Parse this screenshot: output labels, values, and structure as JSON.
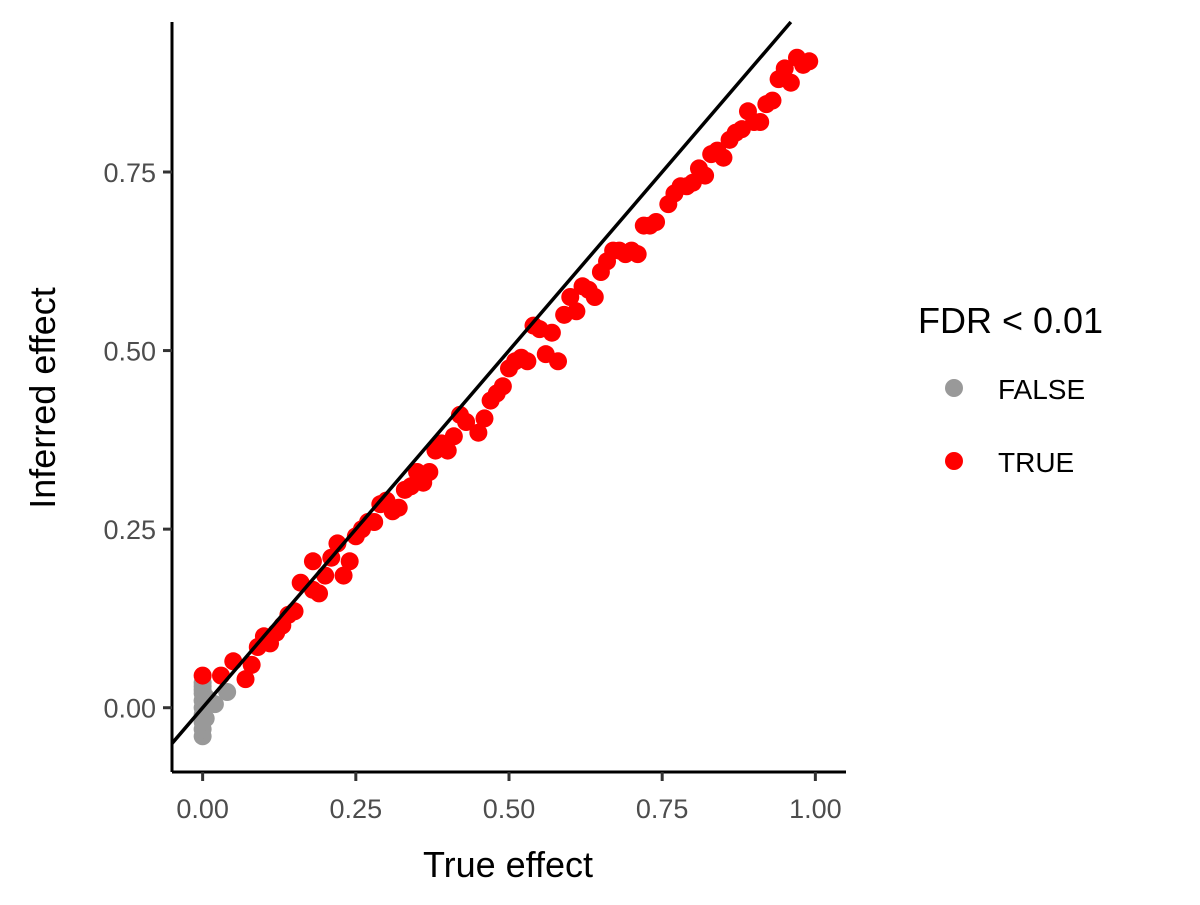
{
  "chart_data": {
    "type": "scatter",
    "xlabel": "True effect",
    "ylabel": "Inferred effect",
    "xlim": [
      -0.05,
      1.05
    ],
    "ylim": [
      -0.09,
      0.96
    ],
    "x_ticks": [
      "0.00",
      "0.25",
      "0.50",
      "0.75",
      "1.00"
    ],
    "y_ticks": [
      "0.00",
      "0.25",
      "0.50",
      "0.75"
    ],
    "x_tick_values": [
      0,
      0.25,
      0.5,
      0.75,
      1.0
    ],
    "y_tick_values": [
      0,
      0.25,
      0.5,
      0.75
    ],
    "grid": false,
    "reference_line": {
      "intercept": 0,
      "slope": 1
    },
    "legend": {
      "title": "FDR < 0.01",
      "position": "right",
      "entries": [
        {
          "label": "FALSE",
          "color": "#999999"
        },
        {
          "label": "TRUE",
          "color": "#ff0000"
        }
      ]
    },
    "series": [
      {
        "name": "FALSE",
        "color": "#999999",
        "points": [
          [
            0.0,
            -0.04
          ],
          [
            0.0,
            -0.03
          ],
          [
            0.0,
            -0.02
          ],
          [
            0.0,
            -0.01
          ],
          [
            0.0,
            0.0
          ],
          [
            0.0,
            0.01
          ],
          [
            0.0,
            0.02
          ],
          [
            0.0,
            0.03
          ],
          [
            0.0,
            0.035
          ],
          [
            0.0,
            0.025
          ],
          [
            0.005,
            0.005
          ],
          [
            0.005,
            -0.015
          ],
          [
            0.005,
            0.015
          ],
          [
            0.01,
            0.01
          ],
          [
            0.02,
            0.005
          ],
          [
            0.04,
            0.022
          ]
        ]
      },
      {
        "name": "TRUE",
        "color": "#ff0000",
        "points": [
          [
            0.0,
            0.045
          ],
          [
            0.03,
            0.045
          ],
          [
            0.05,
            0.065
          ],
          [
            0.07,
            0.04
          ],
          [
            0.08,
            0.06
          ],
          [
            0.09,
            0.085
          ],
          [
            0.1,
            0.1
          ],
          [
            0.11,
            0.09
          ],
          [
            0.12,
            0.105
          ],
          [
            0.13,
            0.115
          ],
          [
            0.14,
            0.13
          ],
          [
            0.15,
            0.135
          ],
          [
            0.16,
            0.175
          ],
          [
            0.18,
            0.165
          ],
          [
            0.18,
            0.205
          ],
          [
            0.19,
            0.16
          ],
          [
            0.2,
            0.185
          ],
          [
            0.21,
            0.21
          ],
          [
            0.22,
            0.23
          ],
          [
            0.23,
            0.185
          ],
          [
            0.24,
            0.205
          ],
          [
            0.25,
            0.24
          ],
          [
            0.26,
            0.25
          ],
          [
            0.27,
            0.26
          ],
          [
            0.28,
            0.26
          ],
          [
            0.29,
            0.285
          ],
          [
            0.3,
            0.29
          ],
          [
            0.31,
            0.275
          ],
          [
            0.32,
            0.28
          ],
          [
            0.33,
            0.305
          ],
          [
            0.34,
            0.31
          ],
          [
            0.35,
            0.33
          ],
          [
            0.36,
            0.315
          ],
          [
            0.37,
            0.33
          ],
          [
            0.38,
            0.36
          ],
          [
            0.39,
            0.37
          ],
          [
            0.4,
            0.36
          ],
          [
            0.41,
            0.38
          ],
          [
            0.42,
            0.41
          ],
          [
            0.43,
            0.4
          ],
          [
            0.45,
            0.385
          ],
          [
            0.46,
            0.405
          ],
          [
            0.47,
            0.43
          ],
          [
            0.48,
            0.44
          ],
          [
            0.49,
            0.45
          ],
          [
            0.5,
            0.475
          ],
          [
            0.51,
            0.485
          ],
          [
            0.52,
            0.49
          ],
          [
            0.53,
            0.485
          ],
          [
            0.54,
            0.535
          ],
          [
            0.55,
            0.53
          ],
          [
            0.56,
            0.495
          ],
          [
            0.57,
            0.525
          ],
          [
            0.58,
            0.485
          ],
          [
            0.59,
            0.55
          ],
          [
            0.6,
            0.575
          ],
          [
            0.61,
            0.555
          ],
          [
            0.62,
            0.59
          ],
          [
            0.63,
            0.585
          ],
          [
            0.64,
            0.575
          ],
          [
            0.65,
            0.61
          ],
          [
            0.66,
            0.625
          ],
          [
            0.67,
            0.64
          ],
          [
            0.68,
            0.64
          ],
          [
            0.69,
            0.635
          ],
          [
            0.7,
            0.64
          ],
          [
            0.71,
            0.635
          ],
          [
            0.72,
            0.675
          ],
          [
            0.73,
            0.675
          ],
          [
            0.74,
            0.68
          ],
          [
            0.76,
            0.705
          ],
          [
            0.77,
            0.72
          ],
          [
            0.78,
            0.73
          ],
          [
            0.79,
            0.73
          ],
          [
            0.8,
            0.735
          ],
          [
            0.81,
            0.755
          ],
          [
            0.82,
            0.745
          ],
          [
            0.83,
            0.775
          ],
          [
            0.84,
            0.78
          ],
          [
            0.85,
            0.77
          ],
          [
            0.86,
            0.795
          ],
          [
            0.87,
            0.805
          ],
          [
            0.88,
            0.81
          ],
          [
            0.89,
            0.835
          ],
          [
            0.9,
            0.82
          ],
          [
            0.91,
            0.82
          ],
          [
            0.92,
            0.845
          ],
          [
            0.93,
            0.85
          ],
          [
            0.94,
            0.88
          ],
          [
            0.95,
            0.895
          ],
          [
            0.96,
            0.875
          ],
          [
            0.97,
            0.91
          ],
          [
            0.98,
            0.9
          ],
          [
            0.99,
            0.905
          ]
        ]
      }
    ]
  }
}
